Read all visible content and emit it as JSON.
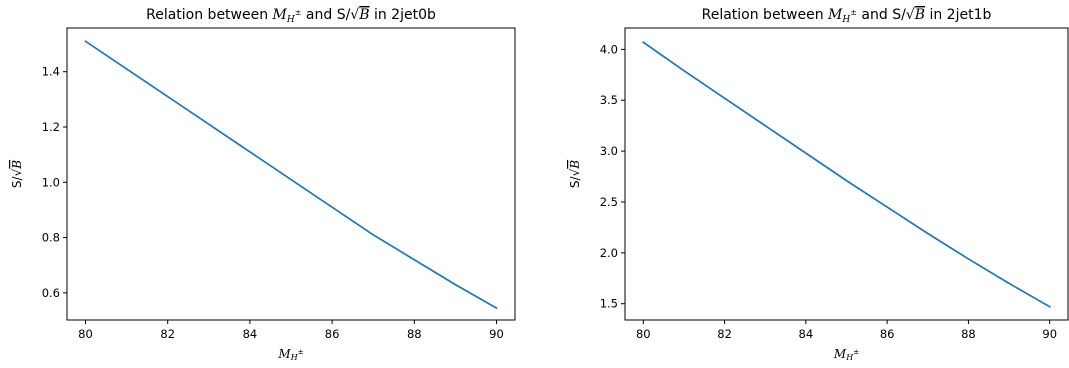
{
  "chart_data": [
    {
      "type": "line",
      "title": {
        "prefix": "Relation between ",
        "symbol": "M",
        "symbol_sub": "H",
        "symbol_sup": "±",
        "mid": " and S/",
        "root_var": "B",
        "suffix": " in 2jet0b"
      },
      "xlabel": {
        "symbol": "M",
        "sub": "H",
        "sup": "±"
      },
      "ylabel": {
        "prefix": "S/",
        "root_var": "B"
      },
      "xlim": [
        79.55,
        90.45
      ],
      "ylim": [
        0.502,
        1.558
      ],
      "xticks": [
        80,
        82,
        84,
        86,
        88,
        90
      ],
      "yticks": [
        0.6,
        0.8,
        1.0,
        1.2,
        1.4
      ],
      "ytick_labels": [
        "0.6",
        "0.8",
        "1.0",
        "1.2",
        "1.4"
      ],
      "series": [
        {
          "color": "#1f77b4",
          "x": [
            80,
            81,
            82,
            83,
            84,
            85,
            86,
            87,
            88,
            89,
            90
          ],
          "y": [
            1.51,
            1.41,
            1.31,
            1.21,
            1.11,
            1.01,
            0.91,
            0.81,
            0.72,
            0.63,
            0.545
          ]
        }
      ]
    },
    {
      "type": "line",
      "title": {
        "prefix": "Relation between ",
        "symbol": "M",
        "symbol_sub": "H",
        "symbol_sup": "±",
        "mid": " and S/",
        "root_var": "B",
        "suffix": " in 2jet1b"
      },
      "xlabel": {
        "symbol": "M",
        "sub": "H",
        "sup": "±"
      },
      "ylabel": {
        "prefix": "S/",
        "root_var": "B"
      },
      "xlim": [
        79.55,
        90.45
      ],
      "ylim": [
        1.34,
        4.21
      ],
      "xticks": [
        80,
        82,
        84,
        86,
        88,
        90
      ],
      "yticks": [
        1.5,
        2.0,
        2.5,
        3.0,
        3.5,
        4.0
      ],
      "ytick_labels": [
        "1.5",
        "2.0",
        "2.5",
        "3.0",
        "3.5",
        "4.0"
      ],
      "series": [
        {
          "color": "#1f77b4",
          "x": [
            80,
            81,
            82,
            83,
            84,
            85,
            86,
            87,
            88,
            89,
            90
          ],
          "y": [
            4.07,
            3.79,
            3.52,
            3.25,
            2.98,
            2.71,
            2.45,
            2.19,
            1.94,
            1.7,
            1.47
          ]
        }
      ]
    }
  ]
}
